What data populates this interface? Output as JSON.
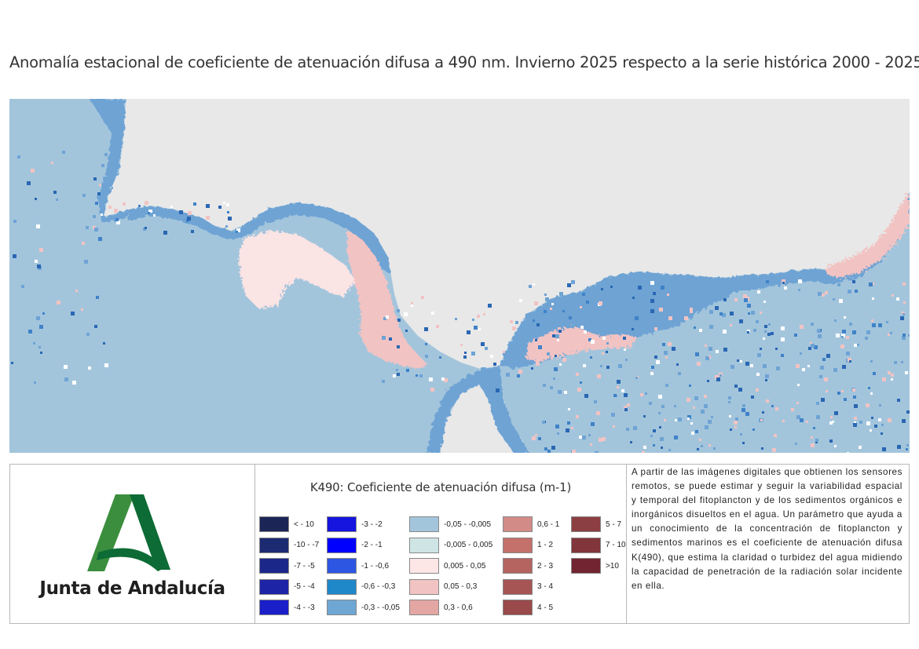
{
  "title": "Anomalía estacional de coeficiente de atenuación difusa a 490 nm. Invierno 2025 respecto a la serie histórica 2000 - 2025",
  "map": {
    "colors": {
      "land": "#e8e8e8",
      "sea_base": "#a3c5dc",
      "negative_low": "#6ea3d4",
      "negative_mid": "#3f82c8",
      "coastal_dark": "#2a67b3",
      "positive_light": "#f2c3c3",
      "positive_pale": "#fbe4e4",
      "white_speck": "#ffffff"
    }
  },
  "logo": {
    "text": "Junta de Andalucía",
    "colors": {
      "green_light": "#3b8e3d",
      "green_dark": "#0d6b35"
    }
  },
  "legend": {
    "title": "K490: Coeficiente de atenuación difusa (m-1)",
    "items": [
      {
        "label": "< - 10",
        "color": "#1b2556"
      },
      {
        "label": "-10 - -7",
        "color": "#1c2a72"
      },
      {
        "label": "-7 - -5",
        "color": "#1c2889"
      },
      {
        "label": "-5 - -4",
        "color": "#1e24a6"
      },
      {
        "label": "-4 - -3",
        "color": "#1a1fc9"
      },
      {
        "label": "-3 - -2",
        "color": "#1515df"
      },
      {
        "label": "-2 - -1",
        "color": "#0000ff"
      },
      {
        "label": "-1 - -0,6",
        "color": "#2d56e2"
      },
      {
        "label": "-0,6 - -0,3",
        "color": "#1e88c8"
      },
      {
        "label": "-0,3 - -0,05",
        "color": "#6fa7d4"
      },
      {
        "label": "-0,05 - -0,005",
        "color": "#a3c5dc"
      },
      {
        "label": "-0,005 - 0,005",
        "color": "#cfe5e5"
      },
      {
        "label": "0,005 - 0,05",
        "color": "#fde6e6"
      },
      {
        "label": "0,05 - 0,3",
        "color": "#f2c3c3"
      },
      {
        "label": "0,3 - 0,6",
        "color": "#e3a6a3"
      },
      {
        "label": "0,6 - 1",
        "color": "#d38b87"
      },
      {
        "label": "1 - 2",
        "color": "#c4716c"
      },
      {
        "label": "2 - 3",
        "color": "#b56460"
      },
      {
        "label": "3 - 4",
        "color": "#a65554"
      },
      {
        "label": "4 - 5",
        "color": "#9a4a4a"
      },
      {
        "label": "5 - 7",
        "color": "#8c3f42"
      },
      {
        "label": "7 - 10",
        "color": "#80363a"
      },
      {
        "label": ">10",
        "color": "#722530"
      }
    ]
  },
  "description": "A partir de las imágenes digitales que obtienen los sensores remotos, se puede estimar y seguir la variabilidad espacial y temporal del fitoplancton y de los sedimentos orgánicos e inorgánicos disueltos en el agua. Un parámetro que ayuda a un conocimiento de la concentración de fitoplancton y sedimentos marinos es el coeficiente de atenuación difusa K(490), que estima la claridad o turbidez del agua midiendo la capacidad de penetración de la radiación solar incidente en ella."
}
